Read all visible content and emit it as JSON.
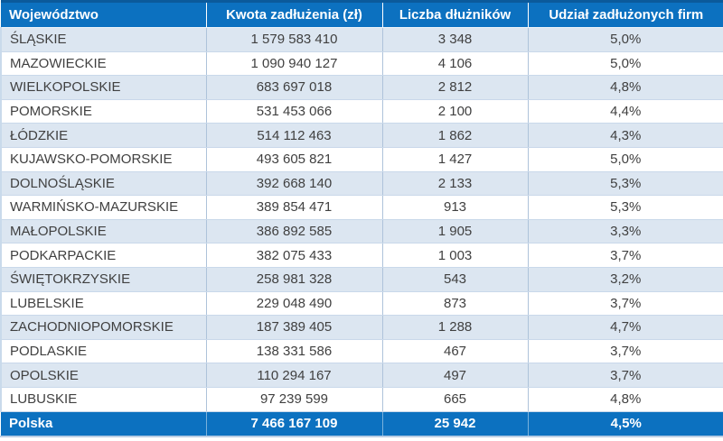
{
  "chart_data": {
    "type": "table",
    "title": "",
    "columns": [
      "Województwo",
      "Kwota zadłużenia (zł)",
      "Liczba dłużników",
      "Udział zadłużonych firm"
    ],
    "rows": [
      {
        "region": "ŚLĄSKIE",
        "debt": "1 579 583 410",
        "debtors": "3 348",
        "share": "5,0%"
      },
      {
        "region": "MAZOWIECKIE",
        "debt": "1 090 940 127",
        "debtors": "4 106",
        "share": "5,0%"
      },
      {
        "region": "WIELKOPOLSKIE",
        "debt": "683 697 018",
        "debtors": "2 812",
        "share": "4,8%"
      },
      {
        "region": "POMORSKIE",
        "debt": "531 453 066",
        "debtors": "2 100",
        "share": "4,4%"
      },
      {
        "region": "ŁÓDZKIE",
        "debt": "514 112 463",
        "debtors": "1 862",
        "share": "4,3%"
      },
      {
        "region": "KUJAWSKO-POMORSKIE",
        "debt": "493 605 821",
        "debtors": "1 427",
        "share": "5,0%"
      },
      {
        "region": "DOLNOŚLĄSKIE",
        "debt": "392 668 140",
        "debtors": "2 133",
        "share": "5,3%"
      },
      {
        "region": "WARMIŃSKO-MAZURSKIE",
        "debt": "389 854 471",
        "debtors": "913",
        "share": "5,3%"
      },
      {
        "region": "MAŁOPOLSKIE",
        "debt": "386 892 585",
        "debtors": "1 905",
        "share": "3,3%"
      },
      {
        "region": "PODKARPACKIE",
        "debt": "382 075 433",
        "debtors": "1 003",
        "share": "3,7%"
      },
      {
        "region": "ŚWIĘTOKRZYSKIE",
        "debt": "258 981 328",
        "debtors": "543",
        "share": "3,2%"
      },
      {
        "region": "LUBELSKIE",
        "debt": "229 048 490",
        "debtors": "873",
        "share": "3,7%"
      },
      {
        "region": "ZACHODNIOPOMORSKIE",
        "debt": "187 389 405",
        "debtors": "1 288",
        "share": "4,7%"
      },
      {
        "region": "PODLASKIE",
        "debt": "138 331 586",
        "debtors": "467",
        "share": "3,7%"
      },
      {
        "region": "OPOLSKIE",
        "debt": "110 294 167",
        "debtors": "497",
        "share": "3,7%"
      },
      {
        "region": "LUBUSKIE",
        "debt": "97 239 599",
        "debtors": "665",
        "share": "4,8%"
      }
    ],
    "total": {
      "region": "Polska",
      "debt": "7 466 167 109",
      "debtors": "25 942",
      "share": "4,5%"
    },
    "layout_hints": {
      "striped": true,
      "stripe_color": "#dce6f1",
      "header_position": "top",
      "total_row_position": "bottom"
    }
  },
  "colors": {
    "header_blue": "#0c71c0",
    "top_border_blue": "#0b5a9b",
    "stripe_light_blue": "#dce6f1",
    "grid_border": "#c9d8ea",
    "body_text": "#404040",
    "header_text": "#ffffff"
  }
}
